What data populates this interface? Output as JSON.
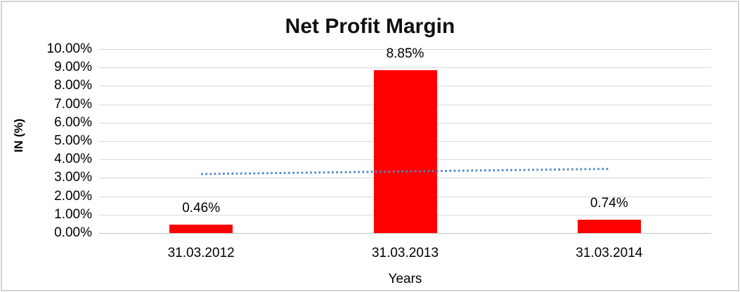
{
  "chart_data": {
    "type": "bar",
    "title": "Net Profit Margin",
    "xlabel": "Years",
    "ylabel": "IN (%)",
    "categories": [
      "31.03.2012",
      "31.03.2013",
      "31.03.2014"
    ],
    "values": [
      0.46,
      8.85,
      0.74
    ],
    "data_labels": [
      "0.46%",
      "8.85%",
      "0.74%"
    ],
    "ylim": [
      0,
      10
    ],
    "ytick_step": 1,
    "ytick_labels": [
      "0.00%",
      "1.00%",
      "2.00%",
      "3.00%",
      "4.00%",
      "5.00%",
      "6.00%",
      "7.00%",
      "8.00%",
      "9.00%",
      "10.00%"
    ],
    "grid": true,
    "legend": false,
    "bar_color": "#ff0000",
    "gridline_color": "#d9d9d9",
    "trendline": {
      "type": "linear",
      "style": "dotted",
      "color": "#4e86c6",
      "value_start": 3.21,
      "value_end": 3.49
    }
  }
}
